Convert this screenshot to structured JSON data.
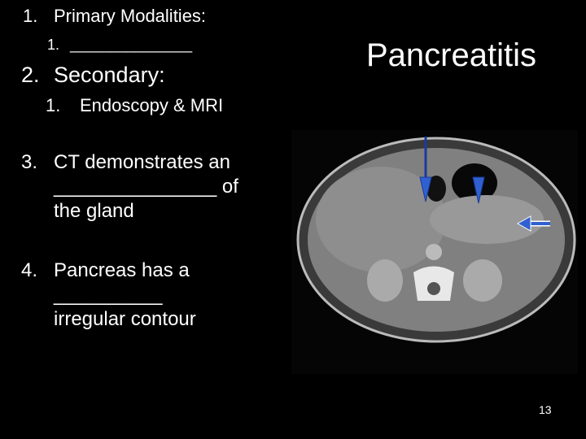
{
  "title": "Pancreatitis",
  "list": [
    {
      "number": "1.",
      "text": "Primary Modalities:",
      "sub": [
        {
          "number": "1.",
          "text": "_______________"
        }
      ]
    },
    {
      "number": "2.",
      "text": "Secondary:",
      "sub": [
        {
          "number": "1.",
          "text": "Endoscopy & MRI"
        }
      ]
    },
    {
      "number": "3.",
      "lines": [
        "CT demonstrates an",
        "_______________ of",
        "the gland"
      ]
    },
    {
      "number": "4.",
      "lines": [
        "Pancreas has a",
        "__________",
        "irregular contour"
      ]
    }
  ],
  "page_number": "13"
}
